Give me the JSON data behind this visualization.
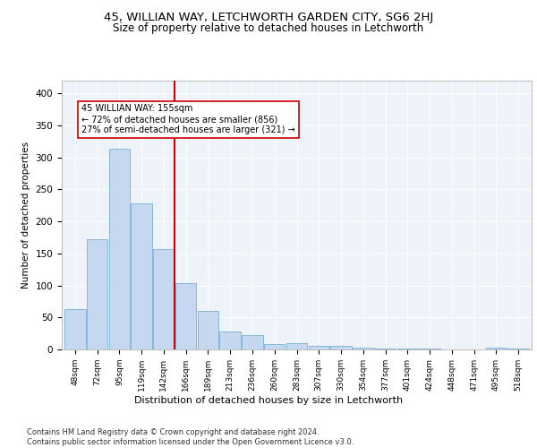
{
  "title1": "45, WILLIAN WAY, LETCHWORTH GARDEN CITY, SG6 2HJ",
  "title2": "Size of property relative to detached houses in Letchworth",
  "xlabel": "Distribution of detached houses by size in Letchworth",
  "ylabel": "Number of detached properties",
  "categories": [
    "48sqm",
    "72sqm",
    "95sqm",
    "119sqm",
    "142sqm",
    "166sqm",
    "189sqm",
    "213sqm",
    "236sqm",
    "260sqm",
    "283sqm",
    "307sqm",
    "330sqm",
    "354sqm",
    "377sqm",
    "401sqm",
    "424sqm",
    "448sqm",
    "471sqm",
    "495sqm",
    "518sqm"
  ],
  "values": [
    63,
    172,
    313,
    228,
    157,
    104,
    60,
    28,
    22,
    9,
    10,
    6,
    5,
    3,
    1,
    1,
    1,
    0,
    0,
    3,
    1
  ],
  "bar_color": "#c5d8f0",
  "bar_edge_color": "#7aafd4",
  "vline_x": 4.5,
  "vline_color": "#cc0000",
  "annotation_text": "45 WILLIAN WAY: 155sqm\n← 72% of detached houses are smaller (856)\n27% of semi-detached houses are larger (321) →",
  "ylim": [
    0,
    420
  ],
  "yticks": [
    0,
    50,
    100,
    150,
    200,
    250,
    300,
    350,
    400
  ],
  "bg_color": "#eef2f9",
  "grid_color": "#ffffff",
  "footer": "Contains HM Land Registry data © Crown copyright and database right 2024.\nContains public sector information licensed under the Open Government Licence v3.0.",
  "title1_fontsize": 9.5,
  "title2_fontsize": 8.5,
  "xlabel_fontsize": 8,
  "ylabel_fontsize": 7.5
}
